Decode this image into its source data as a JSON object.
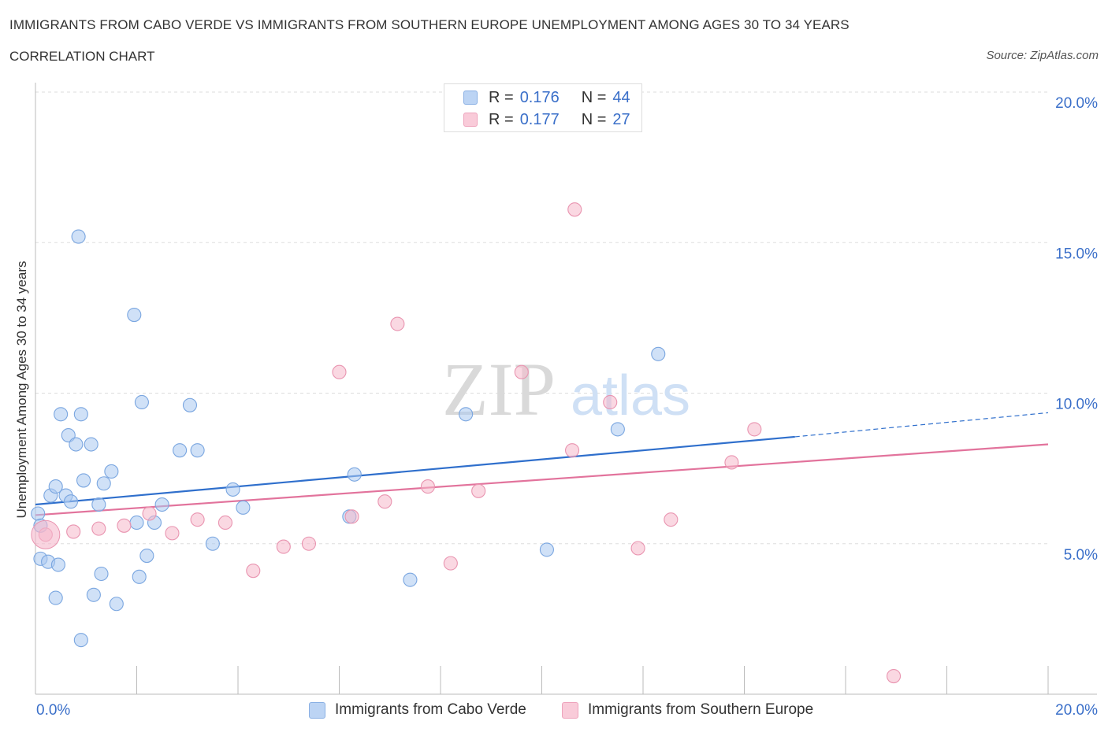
{
  "header": {
    "title": "IMMIGRANTS FROM CABO VERDE VS IMMIGRANTS FROM SOUTHERN EUROPE UNEMPLOYMENT AMONG AGES 30 TO 34 YEARS",
    "subtitle": "CORRELATION CHART",
    "source": "Source: ZipAtlas.com"
  },
  "watermark": {
    "zip": "ZIP",
    "atlas": "atlas"
  },
  "legend": {
    "rows": [
      {
        "r_label": "R =",
        "r_value": "0.176",
        "n_label": "N =",
        "n_value": "44"
      },
      {
        "r_label": "R =",
        "r_value": "0.177",
        "n_label": "N =",
        "n_value": "27"
      }
    ]
  },
  "colors": {
    "blue_fill": "#a9c8f0",
    "blue_stroke": "#7aa6e0",
    "blue_line": "#2f6fcc",
    "pink_fill": "#f5b8cb",
    "pink_stroke": "#e994b0",
    "pink_line": "#e2739c",
    "axis_text": "#3a6fc9",
    "grid": "#dddddd"
  },
  "chart_data": {
    "type": "scatter",
    "title": "IMMIGRANTS FROM CABO VERDE VS IMMIGRANTS FROM SOUTHERN EUROPE UNEMPLOYMENT AMONG AGES 30 TO 34 YEARS",
    "xlabel": "",
    "ylabel": "Unemployment Among Ages 30 to 34 years",
    "xlim": [
      0,
      20
    ],
    "ylim": [
      0,
      20
    ],
    "x_tick_labels": [
      "0.0%",
      "20.0%"
    ],
    "y_ticks": [
      5,
      10,
      15,
      20
    ],
    "y_tick_labels": [
      "5.0%",
      "10.0%",
      "15.0%",
      "20.0%"
    ],
    "grid": true,
    "legend_position": "top-center",
    "series": [
      {
        "name": "Immigrants from Cabo Verde",
        "color": "#a9c8f0",
        "r": 0.176,
        "n": 44,
        "trend": {
          "x_start": 0,
          "y_start": 6.3,
          "x_solid_end": 15,
          "y_solid_end": 8.55,
          "x_end": 20,
          "y_end": 9.35
        },
        "points": [
          [
            0.05,
            6.0
          ],
          [
            0.1,
            5.6
          ],
          [
            0.1,
            4.5
          ],
          [
            0.25,
            4.4
          ],
          [
            0.3,
            6.6
          ],
          [
            0.4,
            3.2
          ],
          [
            0.4,
            6.9
          ],
          [
            0.45,
            4.3
          ],
          [
            0.5,
            9.3
          ],
          [
            0.6,
            6.6
          ],
          [
            0.65,
            8.6
          ],
          [
            0.7,
            6.4
          ],
          [
            0.8,
            8.3
          ],
          [
            0.85,
            15.2
          ],
          [
            0.9,
            1.8
          ],
          [
            0.9,
            9.3
          ],
          [
            0.95,
            7.1
          ],
          [
            1.1,
            8.3
          ],
          [
            1.15,
            3.3
          ],
          [
            1.25,
            6.3
          ],
          [
            1.3,
            4.0
          ],
          [
            1.35,
            7.0
          ],
          [
            1.5,
            7.4
          ],
          [
            1.6,
            3.0
          ],
          [
            1.95,
            12.6
          ],
          [
            2.0,
            5.7
          ],
          [
            2.05,
            3.9
          ],
          [
            2.1,
            9.7
          ],
          [
            2.2,
            4.6
          ],
          [
            2.35,
            5.7
          ],
          [
            2.5,
            6.3
          ],
          [
            2.85,
            8.1
          ],
          [
            3.05,
            9.6
          ],
          [
            3.2,
            8.1
          ],
          [
            3.5,
            5.0
          ],
          [
            3.9,
            6.8
          ],
          [
            4.1,
            6.2
          ],
          [
            6.2,
            5.9
          ],
          [
            6.3,
            7.3
          ],
          [
            7.4,
            3.8
          ],
          [
            8.5,
            9.3
          ],
          [
            10.1,
            4.8
          ],
          [
            11.5,
            8.8
          ],
          [
            12.3,
            11.3
          ]
        ]
      },
      {
        "name": "Immigrants from Southern Europe",
        "color": "#f5b8cb",
        "r": 0.177,
        "n": 27,
        "trend": {
          "x_start": 0,
          "y_start": 5.95,
          "x_end": 20,
          "y_end": 8.3
        },
        "points": [
          [
            0.2,
            5.3
          ],
          [
            0.75,
            5.4
          ],
          [
            1.25,
            5.5
          ],
          [
            1.75,
            5.6
          ],
          [
            2.25,
            6.0
          ],
          [
            2.7,
            5.35
          ],
          [
            3.2,
            5.8
          ],
          [
            3.75,
            5.7
          ],
          [
            4.3,
            4.1
          ],
          [
            4.9,
            4.9
          ],
          [
            5.4,
            5.0
          ],
          [
            6.0,
            10.7
          ],
          [
            6.25,
            5.9
          ],
          [
            6.9,
            6.4
          ],
          [
            7.15,
            12.3
          ],
          [
            7.75,
            6.9
          ],
          [
            8.2,
            4.35
          ],
          [
            8.75,
            6.75
          ],
          [
            9.6,
            10.7
          ],
          [
            10.6,
            8.1
          ],
          [
            10.65,
            16.1
          ],
          [
            11.35,
            9.7
          ],
          [
            11.9,
            4.85
          ],
          [
            12.55,
            5.8
          ],
          [
            13.75,
            7.7
          ],
          [
            14.2,
            8.8
          ],
          [
            16.95,
            0.6
          ]
        ]
      }
    ]
  }
}
